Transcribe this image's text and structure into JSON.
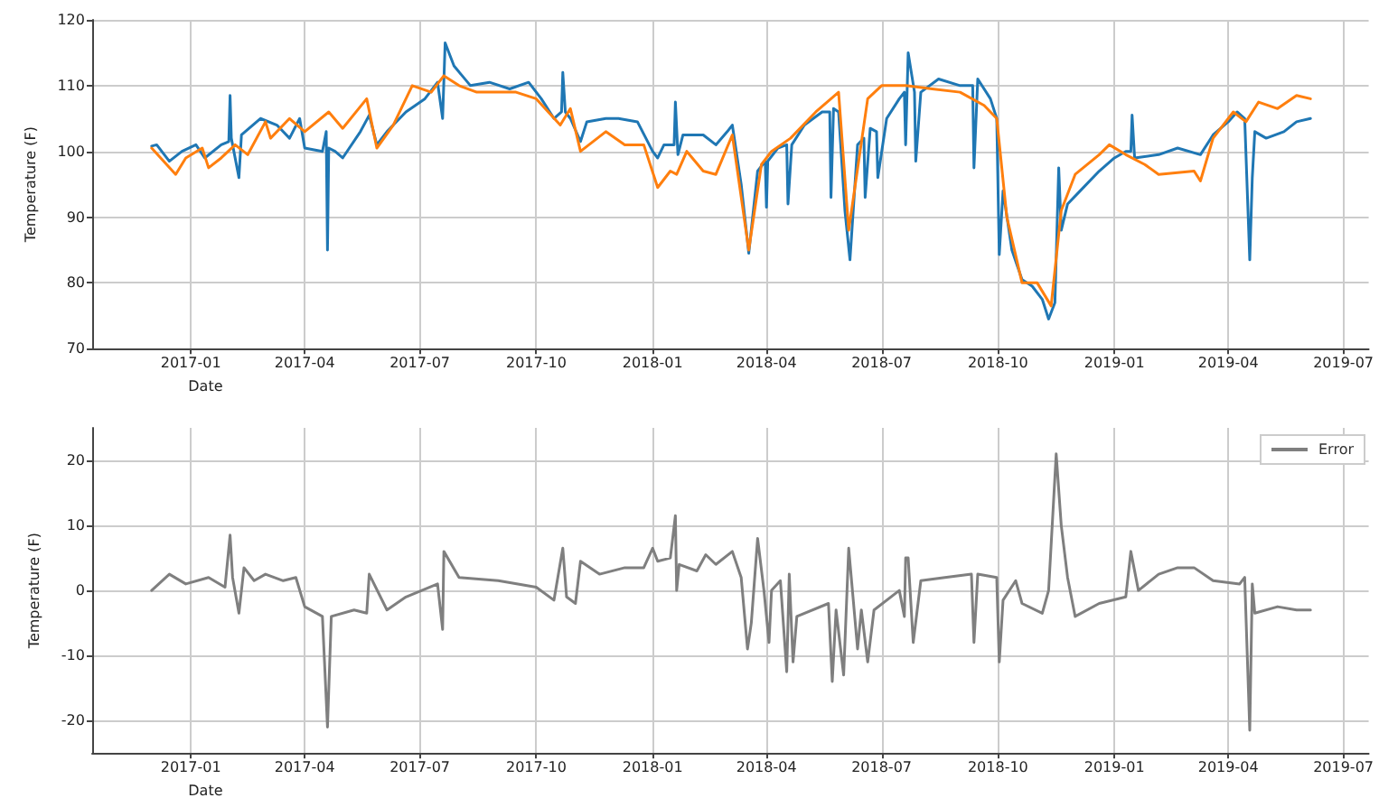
{
  "chart_data": [
    {
      "type": "line",
      "xlabel": "Date",
      "ylabel": "Temperature (F)",
      "xlim": [
        "2016-10-15",
        "2019-07-21"
      ],
      "ylim": [
        70,
        120
      ],
      "xticks": [
        "2017-01",
        "2017-04",
        "2017-07",
        "2017-10",
        "2018-01",
        "2018-04",
        "2018-07",
        "2018-10",
        "2019-01",
        "2019-04",
        "2019-07"
      ],
      "yticks": [
        70,
        80,
        90,
        100,
        110,
        120
      ],
      "grid": true,
      "legend": false,
      "series": [
        {
          "color": "#1f77b4",
          "x": [
            "2016-12-01",
            "2016-12-05",
            "2016-12-15",
            "2016-12-25",
            "2017-01-05",
            "2017-01-12",
            "2017-01-25",
            "2017-01-31",
            "2017-02-01",
            "2017-02-02",
            "2017-02-08",
            "2017-02-10",
            "2017-02-25",
            "2017-03-10",
            "2017-03-20",
            "2017-03-28",
            "2017-04-01",
            "2017-04-15",
            "2017-04-18",
            "2017-04-19",
            "2017-04-20",
            "2017-04-25",
            "2017-05-01",
            "2017-05-15",
            "2017-05-22",
            "2017-05-28",
            "2017-06-05",
            "2017-06-20",
            "2017-07-05",
            "2017-07-15",
            "2017-07-19",
            "2017-07-21",
            "2017-07-28",
            "2017-08-10",
            "2017-08-25",
            "2017-09-10",
            "2017-09-25",
            "2017-10-05",
            "2017-10-15",
            "2017-10-21",
            "2017-10-22",
            "2017-10-24",
            "2017-10-28",
            "2017-11-05",
            "2017-11-10",
            "2017-11-25",
            "2017-12-05",
            "2017-12-20",
            "2018-01-01",
            "2018-01-05",
            "2018-01-10",
            "2018-01-18",
            "2018-01-19",
            "2018-01-21",
            "2018-01-25",
            "2018-02-10",
            "2018-02-20",
            "2018-03-01",
            "2018-03-05",
            "2018-03-12",
            "2018-03-18",
            "2018-03-25",
            "2018-03-31",
            "2018-04-01",
            "2018-04-02",
            "2018-04-10",
            "2018-04-17",
            "2018-04-18",
            "2018-04-21",
            "2018-05-01",
            "2018-05-15",
            "2018-05-21",
            "2018-05-22",
            "2018-05-24",
            "2018-05-28",
            "2018-06-02",
            "2018-06-06",
            "2018-06-12",
            "2018-06-17",
            "2018-06-18",
            "2018-06-22",
            "2018-06-27",
            "2018-06-28",
            "2018-07-05",
            "2018-07-15",
            "2018-07-19",
            "2018-07-20",
            "2018-07-22",
            "2018-07-27",
            "2018-07-28",
            "2018-08-01",
            "2018-08-15",
            "2018-09-01",
            "2018-09-11",
            "2018-09-12",
            "2018-09-15",
            "2018-09-25",
            "2018-09-30",
            "2018-10-02",
            "2018-10-05",
            "2018-10-12",
            "2018-10-20",
            "2018-10-28",
            "2018-11-05",
            "2018-11-10",
            "2018-11-15",
            "2018-11-18",
            "2018-11-20",
            "2018-11-25",
            "2018-12-05",
            "2018-12-20",
            "2019-01-01",
            "2019-01-10",
            "2019-01-14",
            "2019-01-15",
            "2019-01-17",
            "2019-02-05",
            "2019-02-20",
            "2019-03-10",
            "2019-03-20",
            "2019-04-01",
            "2019-04-08",
            "2019-04-14",
            "2019-04-18",
            "2019-04-20",
            "2019-04-22",
            "2019-05-01",
            "2019-05-15",
            "2019-05-25",
            "2019-06-05"
          ],
          "values": [
            100.8,
            101,
            98.5,
            100,
            101,
            99,
            101,
            101.5,
            108.5,
            102,
            96,
            102.5,
            105,
            104,
            102,
            105,
            100.5,
            100,
            103,
            85,
            100.5,
            100,
            99,
            103,
            105.5,
            101,
            103,
            106,
            108,
            110.5,
            105,
            116.5,
            113,
            110,
            110.5,
            109.5,
            110.5,
            108,
            105,
            106,
            112,
            106,
            105,
            101.5,
            104.5,
            105,
            105,
            104.5,
            100,
            99,
            101,
            101,
            107.5,
            99.5,
            102.5,
            102.5,
            101,
            103,
            104,
            95,
            84.5,
            97,
            98.5,
            91.5,
            98.5,
            100.5,
            101,
            92,
            101,
            104,
            106,
            106,
            93,
            106.5,
            106,
            91,
            83.5,
            101,
            102,
            93,
            103.5,
            103,
            96,
            105,
            108,
            109,
            101,
            115,
            109,
            98.5,
            109,
            111,
            110,
            110,
            97.5,
            111,
            108,
            105,
            84.3,
            94,
            85,
            80.5,
            79.5,
            77.5,
            74.5,
            77,
            97.5,
            88,
            92,
            94,
            97,
            99,
            100,
            100,
            105.5,
            99,
            99.5,
            100.5,
            99.5,
            102.5,
            104.5,
            106,
            105,
            83.5,
            96,
            103,
            102,
            103,
            104.5,
            105
          ]
        },
        {
          "color": "#ff7f0e",
          "x": [
            "2016-12-01",
            "2016-12-20",
            "2016-12-28",
            "2017-01-10",
            "2017-01-15",
            "2017-01-25",
            "2017-02-05",
            "2017-02-15",
            "2017-03-01",
            "2017-03-05",
            "2017-03-20",
            "2017-04-01",
            "2017-04-20",
            "2017-05-01",
            "2017-05-20",
            "2017-05-28",
            "2017-06-10",
            "2017-06-25",
            "2017-07-10",
            "2017-07-20",
            "2017-08-01",
            "2017-08-15",
            "2017-09-15",
            "2017-10-01",
            "2017-10-20",
            "2017-10-28",
            "2017-11-05",
            "2017-11-25",
            "2017-12-10",
            "2017-12-25",
            "2018-01-05",
            "2018-01-15",
            "2018-01-20",
            "2018-01-28",
            "2018-02-10",
            "2018-02-20",
            "2018-03-05",
            "2018-03-18",
            "2018-03-28",
            "2018-04-05",
            "2018-04-20",
            "2018-05-10",
            "2018-05-28",
            "2018-06-05",
            "2018-06-20",
            "2018-07-01",
            "2018-07-20",
            "2018-08-10",
            "2018-09-01",
            "2018-09-20",
            "2018-09-30",
            "2018-10-08",
            "2018-10-20",
            "2018-11-01",
            "2018-11-12",
            "2018-11-20",
            "2018-12-01",
            "2018-12-20",
            "2018-12-28",
            "2019-01-10",
            "2019-01-25",
            "2019-02-05",
            "2019-03-05",
            "2019-03-10",
            "2019-03-20",
            "2019-04-05",
            "2019-04-15",
            "2019-04-25",
            "2019-05-10",
            "2019-05-25",
            "2019-06-05"
          ],
          "values": [
            100.5,
            96.5,
            99,
            100.5,
            97.5,
            99,
            101,
            99.5,
            104.5,
            102,
            105,
            103,
            106,
            103.5,
            108,
            100.5,
            104,
            110,
            109,
            111.5,
            110,
            109,
            109,
            108,
            104,
            106.5,
            100,
            103,
            101,
            101,
            94.5,
            97,
            96.5,
            100,
            97,
            96.5,
            102.5,
            85,
            98,
            100,
            102,
            106,
            109,
            88,
            108,
            110,
            110,
            109.5,
            109,
            107,
            105,
            90,
            80,
            80,
            76.5,
            91,
            96.5,
            99.5,
            101,
            99.5,
            98,
            96.5,
            97,
            95.5,
            102,
            106,
            104.5,
            107.5,
            106.5,
            108.5,
            108
          ]
        }
      ]
    },
    {
      "type": "line",
      "xlabel": "Date",
      "ylabel": "Temperature (F)",
      "xlim": [
        "2016-10-15",
        "2019-07-21"
      ],
      "ylim": [
        -25,
        25
      ],
      "xticks": [
        "2017-01",
        "2017-04",
        "2017-07",
        "2017-10",
        "2018-01",
        "2018-04",
        "2018-07",
        "2018-10",
        "2019-01",
        "2019-04",
        "2019-07"
      ],
      "yticks": [
        -20,
        -10,
        0,
        10,
        20
      ],
      "grid": true,
      "legend": "top right",
      "series": [
        {
          "name": "Error",
          "color": "#7f7f7f",
          "x": [
            "2016-12-01",
            "2016-12-15",
            "2016-12-28",
            "2017-01-15",
            "2017-01-28",
            "2017-02-01",
            "2017-02-03",
            "2017-02-08",
            "2017-02-12",
            "2017-02-20",
            "2017-03-01",
            "2017-03-15",
            "2017-03-25",
            "2017-04-01",
            "2017-04-15",
            "2017-04-19",
            "2017-04-22",
            "2017-05-10",
            "2017-05-20",
            "2017-05-22",
            "2017-06-05",
            "2017-06-20",
            "2017-07-15",
            "2017-07-19",
            "2017-07-20",
            "2017-08-01",
            "2017-09-01",
            "2017-10-01",
            "2017-10-15",
            "2017-10-22",
            "2017-10-25",
            "2017-11-01",
            "2017-11-05",
            "2017-11-20",
            "2017-12-10",
            "2017-12-25",
            "2018-01-01",
            "2018-01-05",
            "2018-01-15",
            "2018-01-19",
            "2018-01-20",
            "2018-01-22",
            "2018-02-05",
            "2018-02-12",
            "2018-02-20",
            "2018-03-05",
            "2018-03-12",
            "2018-03-17",
            "2018-03-20",
            "2018-03-25",
            "2018-03-30",
            "2018-04-03",
            "2018-04-05",
            "2018-04-12",
            "2018-04-17",
            "2018-04-19",
            "2018-04-22",
            "2018-04-25",
            "2018-05-20",
            "2018-05-23",
            "2018-05-26",
            "2018-06-01",
            "2018-06-05",
            "2018-06-12",
            "2018-06-15",
            "2018-06-20",
            "2018-06-25",
            "2018-07-15",
            "2018-07-19",
            "2018-07-20",
            "2018-07-22",
            "2018-07-26",
            "2018-08-01",
            "2018-08-20",
            "2018-09-10",
            "2018-09-12",
            "2018-09-15",
            "2018-09-30",
            "2018-10-02",
            "2018-10-05",
            "2018-10-15",
            "2018-10-20",
            "2018-11-05",
            "2018-11-10",
            "2018-11-16",
            "2018-11-20",
            "2018-11-25",
            "2018-12-01",
            "2018-12-20",
            "2019-01-10",
            "2019-01-14",
            "2019-01-20",
            "2019-02-05",
            "2019-02-20",
            "2019-03-05",
            "2019-03-20",
            "2019-04-10",
            "2019-04-14",
            "2019-04-18",
            "2019-04-20",
            "2019-04-22",
            "2019-05-10",
            "2019-05-25",
            "2019-06-05"
          ],
          "values": [
            0,
            2.5,
            1,
            2,
            0.5,
            8.5,
            2,
            -3.5,
            3.5,
            1.5,
            2.5,
            1.5,
            2,
            -2.5,
            -4,
            -21,
            -4,
            -3,
            -3.5,
            2.5,
            -3,
            -1,
            1,
            -6,
            6,
            2,
            1.5,
            0.5,
            -1.5,
            6.5,
            -1,
            -2,
            4.5,
            2.5,
            3.5,
            3.5,
            6.5,
            4.5,
            5,
            11.5,
            0,
            4,
            3,
            5.5,
            4,
            6,
            2,
            -9,
            -5,
            8,
            0,
            -8,
            0,
            1.5,
            -12.5,
            2.5,
            -11,
            -4,
            -2,
            -14,
            -3,
            -13,
            6.5,
            -9,
            -3,
            -11,
            -3,
            0,
            -4,
            5,
            5,
            -8,
            1.5,
            2,
            2.5,
            -8,
            2.5,
            2,
            -11,
            -1.5,
            1.5,
            -2,
            -3.5,
            0,
            21,
            10,
            2,
            -4,
            -2,
            -1,
            6,
            0,
            2.5,
            3.5,
            3.5,
            1.5,
            1,
            2,
            -21.5,
            1,
            -3.5,
            -2.5,
            -3,
            -3
          ]
        }
      ]
    }
  ]
}
